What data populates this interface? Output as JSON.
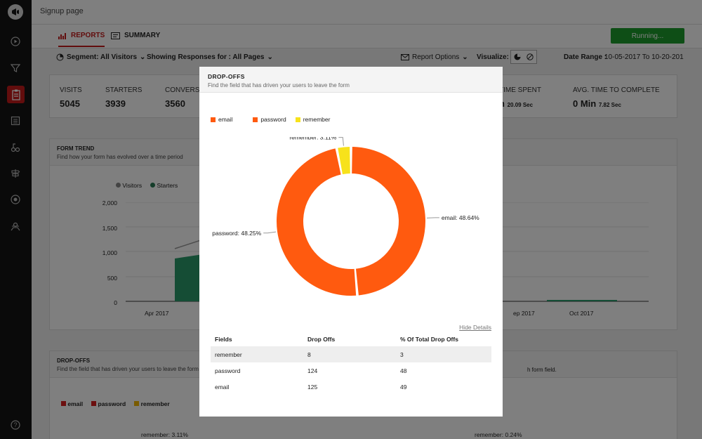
{
  "app": {
    "page_title": "Signup page",
    "tabs": [
      {
        "label": "REPORTS",
        "active": true
      },
      {
        "label": "SUMMARY",
        "active": false
      }
    ],
    "status_button": "Running...",
    "accent_color": "#c41a1a",
    "status_color": "#1d9c2c"
  },
  "filters": {
    "segment": "Segment: All Visitors",
    "responses": "Showing Responses for : All Pages",
    "report_options": "Report Options",
    "visualize_label": "Visualize:",
    "date_range_label": "Date Range :",
    "date_range_value": "10-05-2017 To 10-20-201"
  },
  "stats": {
    "visits_label": "VISITS",
    "visits_value": "5045",
    "starters_label": "STARTERS",
    "starters_value": "3939",
    "conversions_label": "CONVERSIO",
    "conversions_value": "3560",
    "time_spent_label": "TIME SPENT",
    "time_spent_value": "n",
    "time_spent_small": "20.09 Sec",
    "avg_label": "AVG. TIME TO COMPLETE",
    "avg_value": "0 Min",
    "avg_small": "7.82 Sec"
  },
  "form_trend": {
    "title": "FORM TREND",
    "subtitle": "Find how your form has evolved over a time period",
    "legend": [
      "Visitors",
      "Starters"
    ],
    "y_ticks": [
      "2,000",
      "1,500",
      "1,000",
      "500",
      "0"
    ],
    "x_ticks": [
      "Apr 2017",
      "ep 2017",
      "Oct 2017"
    ]
  },
  "bg_dropoffs": {
    "title": "DROP-OFFS",
    "subtitle": "Find the field that has driven your users to leave the form",
    "right_subtitle": "h form field.",
    "legend": [
      "email",
      "password",
      "remember"
    ],
    "left_label": "remember: 3.11%",
    "right_label": "remember: 0.24%"
  },
  "modal": {
    "title": "DROP-OFFS",
    "subtitle": "Find the field that has driven your users to leave the form",
    "legend": [
      {
        "label": "email",
        "color": "#ff5a0f"
      },
      {
        "label": "password",
        "color": "#ff5a0f"
      },
      {
        "label": "remember",
        "color": "#f7e21b"
      }
    ],
    "hide_details": "Hide Details",
    "table_headers": [
      "Fields",
      "Drop Offs",
      "% Of Total Drop Offs"
    ],
    "table_rows": [
      [
        "remember",
        "8",
        "3"
      ],
      [
        "password",
        "124",
        "48"
      ],
      [
        "email",
        "125",
        "49"
      ]
    ]
  },
  "chart_data": {
    "type": "pie",
    "categories": [
      "email",
      "password",
      "remember"
    ],
    "values": [
      48.64,
      48.25,
      3.11
    ],
    "labels": [
      "email: 48.64%",
      "password: 48.25%",
      "remember: 3.11%"
    ],
    "colors": [
      "#ff5a0f",
      "#ff5a0f",
      "#f7e21b"
    ],
    "donut": true
  }
}
